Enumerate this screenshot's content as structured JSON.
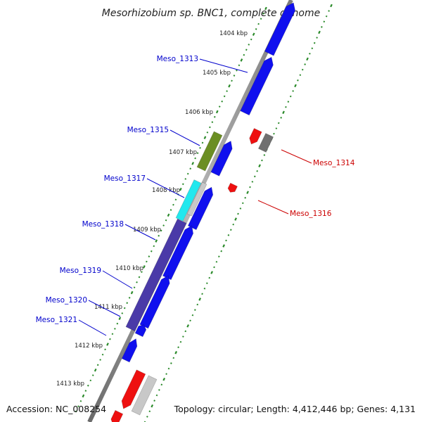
{
  "title": "Mesorhizobium sp. BNC1, complete genome",
  "accession": "Accession: NC_008254",
  "topology": "Topology: circular; Length: 4,412,446 bp; Genes: 4,131",
  "colors": {
    "forward_gene": "#1010ee",
    "reverse_gene": "#ee1010",
    "label_forward": "#0000cc",
    "label_reverse": "#cc0000",
    "backbone": "#909090",
    "tick": "#2a8a2a",
    "cyan_gene": "#22e8ee",
    "olive_gene": "#6b8e23",
    "dark_blue_gene": "#4a3aa8",
    "grey_gene": "#707070",
    "light_grey_gene": "#c8c8c8"
  },
  "kbp_labels": [
    "1404 kbp",
    "1405 kbp",
    "1406 kbp",
    "1407 kbp",
    "1408 kbp",
    "1409 kbp",
    "1410 kbp",
    "1411 kbp",
    "1412 kbp",
    "1413 kbp"
  ],
  "gene_labels": [
    {
      "text": "Meso_1313",
      "strand": "forward"
    },
    {
      "text": "Meso_1315",
      "strand": "forward"
    },
    {
      "text": "Meso_1317",
      "strand": "forward"
    },
    {
      "text": "Meso_1318",
      "strand": "forward"
    },
    {
      "text": "Meso_1319",
      "strand": "forward"
    },
    {
      "text": "Meso_1320",
      "strand": "forward"
    },
    {
      "text": "Meso_1321",
      "strand": "forward"
    },
    {
      "text": "Meso_1314",
      "strand": "reverse"
    },
    {
      "text": "Meso_1316",
      "strand": "reverse"
    }
  ]
}
